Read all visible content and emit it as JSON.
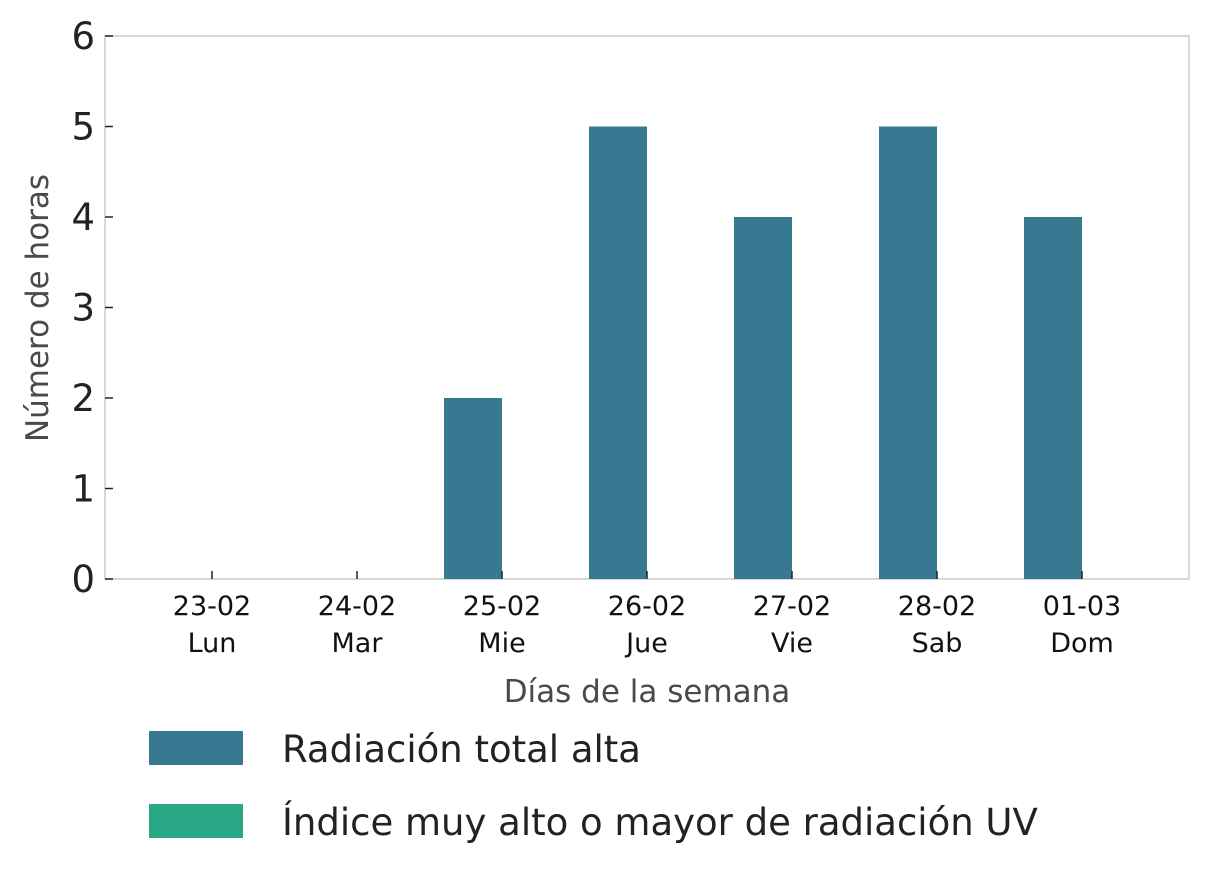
{
  "chart_data": {
    "type": "bar",
    "xlabel": "Días de la semana",
    "ylabel": "Número de horas",
    "ylim": [
      0,
      6
    ],
    "yticks": [
      0,
      1,
      2,
      3,
      4,
      5,
      6
    ],
    "categories": [
      {
        "date": "23-02",
        "day": "Lun"
      },
      {
        "date": "24-02",
        "day": "Mar"
      },
      {
        "date": "25-02",
        "day": "Mie"
      },
      {
        "date": "26-02",
        "day": "Jue"
      },
      {
        "date": "27-02",
        "day": "Vie"
      },
      {
        "date": "28-02",
        "day": "Sab"
      },
      {
        "date": "01-03",
        "day": "Dom"
      }
    ],
    "series": [
      {
        "name": "Radiación total alta",
        "color": "#377991",
        "values": [
          0,
          0,
          2,
          5,
          4,
          5,
          4
        ]
      },
      {
        "name": "Índice muy alto o mayor de radiación UV",
        "color": "#2aa886",
        "values": [
          0,
          0,
          0,
          0,
          0,
          0,
          0
        ]
      }
    ],
    "grid": false,
    "legend_position": "bottom"
  }
}
